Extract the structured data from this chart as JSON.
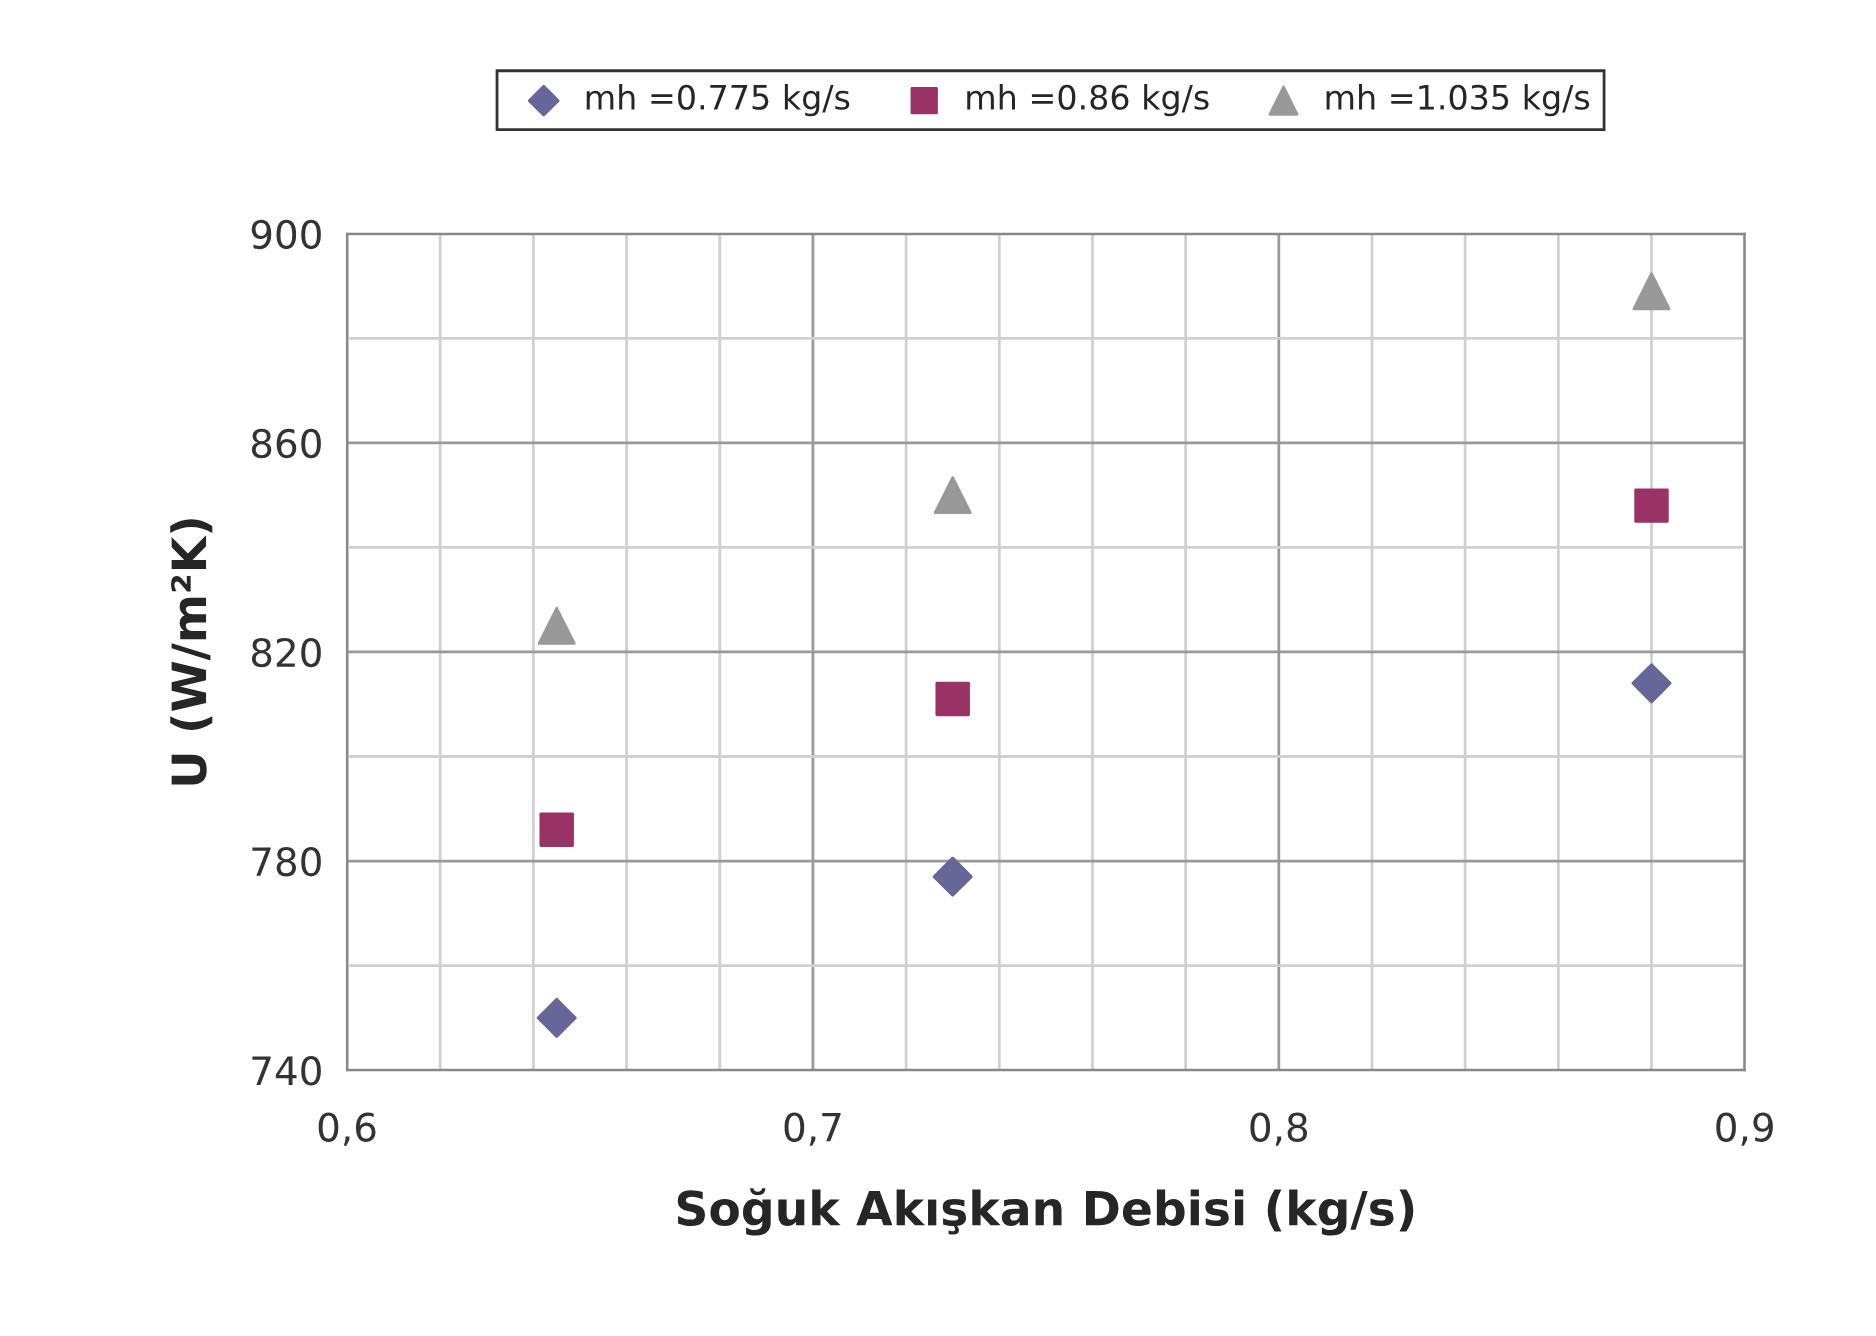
{
  "chart_data": {
    "type": "scatter",
    "xlabel": "Soğuk Akışkan Debisi (kg/s)",
    "ylabel": "U (W/m²K)",
    "x": [
      0.645,
      0.73,
      0.88
    ],
    "series": [
      {
        "name": "mh =0.775 kg/s",
        "color": "#666699",
        "marker": "diamond",
        "values": [
          750,
          777,
          814
        ]
      },
      {
        "name": "mh =0.86 kg/s",
        "color": "#993366",
        "marker": "square",
        "values": [
          786,
          811,
          848
        ]
      },
      {
        "name": "mh =1.035 kg/s",
        "color": "#999999",
        "marker": "triangle",
        "values": [
          825,
          850,
          889
        ]
      }
    ],
    "xlim": [
      0.6,
      0.9
    ],
    "xticks": [
      {
        "value": 0.6,
        "label": "0,6"
      },
      {
        "value": 0.62,
        "label": null
      },
      {
        "value": 0.64,
        "label": null
      },
      {
        "value": 0.66,
        "label": null
      },
      {
        "value": 0.68,
        "label": null
      },
      {
        "value": 0.7,
        "label": "0,7"
      },
      {
        "value": 0.72,
        "label": null
      },
      {
        "value": 0.74,
        "label": null
      },
      {
        "value": 0.76,
        "label": null
      },
      {
        "value": 0.78,
        "label": null
      },
      {
        "value": 0.8,
        "label": "0,8"
      },
      {
        "value": 0.82,
        "label": null
      },
      {
        "value": 0.84,
        "label": null
      },
      {
        "value": 0.86,
        "label": null
      },
      {
        "value": 0.88,
        "label": null
      },
      {
        "value": 0.9,
        "label": "0,9"
      }
    ],
    "ylim": [
      740,
      900
    ],
    "yticks": [
      740,
      {
        "value": 760,
        "label": null
      },
      780,
      {
        "value": 800,
        "label": null
      },
      820,
      {
        "value": 840,
        "label": null
      },
      860,
      {
        "value": 880,
        "label": null
      },
      900
    ],
    "grid": true,
    "legend": "top"
  }
}
